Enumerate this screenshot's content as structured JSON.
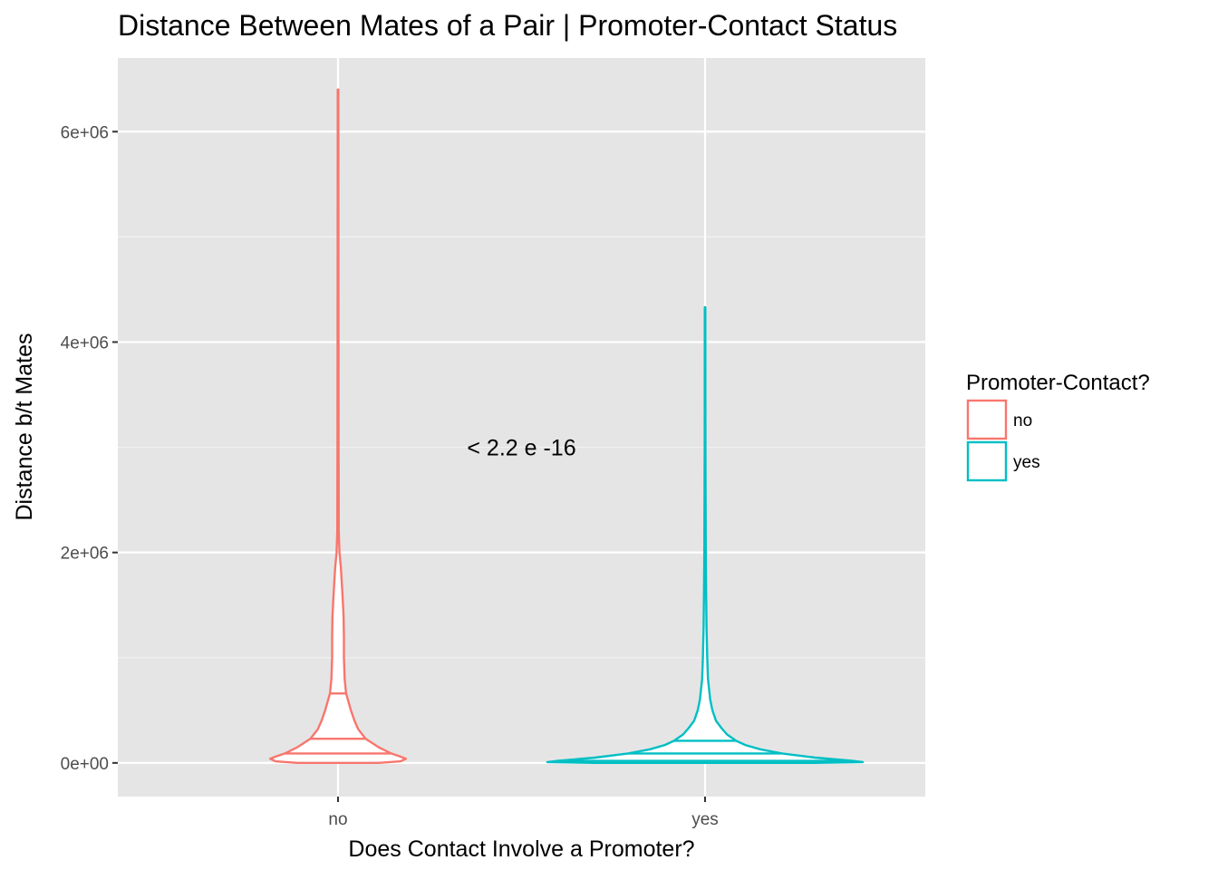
{
  "chart_data": {
    "type": "violin",
    "title": "Distance Between Mates of a Pair | Promoter-Contact Status",
    "xlabel": "Does Contact Involve a Promoter?",
    "ylabel": "Distance b/t Mates",
    "categories": [
      "no",
      "yes"
    ],
    "y_ticks": [
      {
        "value": 0,
        "label": "0e+00"
      },
      {
        "value": 2000000,
        "label": "2e+06"
      },
      {
        "value": 4000000,
        "label": "4e+06"
      },
      {
        "value": 6000000,
        "label": "6e+06"
      }
    ],
    "ylim": [
      -320000,
      6700000
    ],
    "grid": true,
    "legend": {
      "title": "Promoter-Contact?",
      "position": "right",
      "entries": [
        {
          "label": "no",
          "color": "#F8766D"
        },
        {
          "label": "yes",
          "color": "#00BFC4"
        }
      ]
    },
    "annotation": {
      "text": "< 2.2 e -16",
      "x": 1.5,
      "y": 3000000
    },
    "series": [
      {
        "name": "no",
        "color": "#F8766D",
        "max": 6400000,
        "quantiles": [
          {
            "q": 0.25,
            "y": 90000,
            "halfwidth": 0.145
          },
          {
            "q": 0.5,
            "y": 230000,
            "halfwidth": 0.075
          },
          {
            "q": 0.75,
            "y": 660000,
            "halfwidth": 0.022
          }
        ],
        "profile": [
          [
            0,
            0.11
          ],
          [
            15000,
            0.17
          ],
          [
            40000,
            0.185
          ],
          [
            60000,
            0.17
          ],
          [
            90000,
            0.145
          ],
          [
            150000,
            0.11
          ],
          [
            230000,
            0.075
          ],
          [
            320000,
            0.055
          ],
          [
            400000,
            0.045
          ],
          [
            500000,
            0.035
          ],
          [
            660000,
            0.022
          ],
          [
            800000,
            0.018
          ],
          [
            1000000,
            0.016
          ],
          [
            1200000,
            0.016
          ],
          [
            1400000,
            0.015
          ],
          [
            1600000,
            0.012
          ],
          [
            1850000,
            0.008
          ],
          [
            2000000,
            0.004
          ],
          [
            2200000,
            0.002
          ],
          [
            3000000,
            0.0015
          ],
          [
            5000000,
            0.001
          ],
          [
            6400000,
            0.0008
          ]
        ]
      },
      {
        "name": "yes",
        "color": "#00BFC4",
        "max": 4330000,
        "quantiles": [
          {
            "q": 0.25,
            "y": 20000,
            "halfwidth": 0.4
          },
          {
            "q": 0.5,
            "y": 90000,
            "halfwidth": 0.21
          },
          {
            "q": 0.75,
            "y": 210000,
            "halfwidth": 0.085
          }
        ],
        "profile": [
          [
            0,
            0.3
          ],
          [
            8000,
            0.43
          ],
          [
            20000,
            0.4
          ],
          [
            50000,
            0.3
          ],
          [
            90000,
            0.21
          ],
          [
            130000,
            0.15
          ],
          [
            170000,
            0.11
          ],
          [
            210000,
            0.085
          ],
          [
            270000,
            0.06
          ],
          [
            330000,
            0.045
          ],
          [
            400000,
            0.03
          ],
          [
            500000,
            0.02
          ],
          [
            600000,
            0.014
          ],
          [
            800000,
            0.008
          ],
          [
            1000000,
            0.006
          ],
          [
            1300000,
            0.004
          ],
          [
            1600000,
            0.003
          ],
          [
            2000000,
            0.002
          ],
          [
            3000000,
            0.001
          ],
          [
            4330000,
            0.0008
          ]
        ]
      }
    ]
  }
}
